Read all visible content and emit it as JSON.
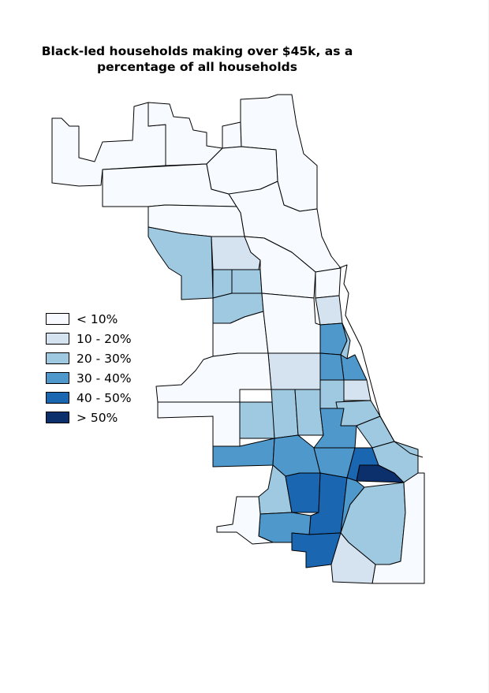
{
  "title": {
    "line1": "Black-led households making over $45k, as a",
    "line2": "percentage of all households"
  },
  "legend": [
    {
      "label": "< 10%",
      "color": "#f7fbff"
    },
    {
      "label": "10 - 20%",
      "color": "#d5e3f1"
    },
    {
      "label": "20 - 30%",
      "color": "#9ec9e1"
    },
    {
      "label": "30 - 40%",
      "color": "#4f98cb"
    },
    {
      "label": "40 - 50%",
      "color": "#1b66b0"
    },
    {
      "label": "> 50%",
      "color": "#0b306c"
    }
  ],
  "colors": {
    "outline": "#000000",
    "background": "#ffffff"
  }
}
